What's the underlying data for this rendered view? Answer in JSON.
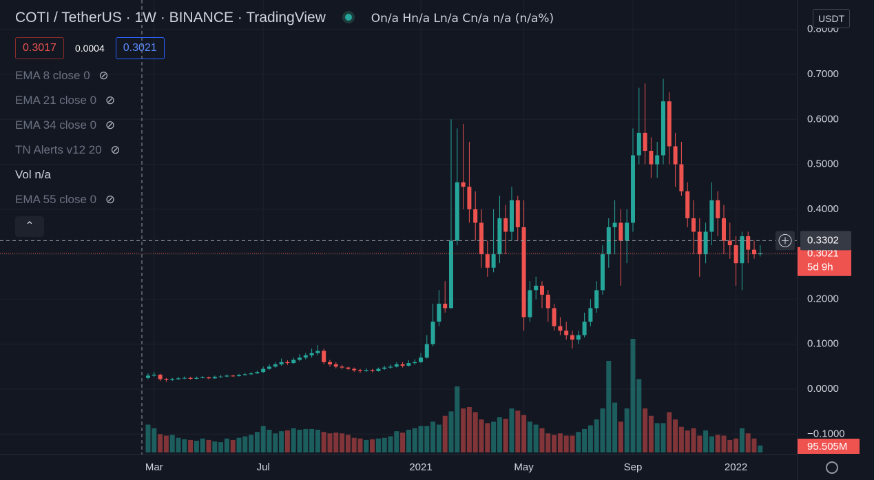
{
  "chart_data": {
    "type": "candlestick",
    "symbol": "COTI / TetherUS",
    "interval": "1W",
    "exchange": "BINANCE",
    "brand": "TradingView",
    "ohlc_legend": "On/a Hn/a Ln/a Cn/a n/a (n/a%)",
    "sell_price": "0.3017",
    "spread": "0.0004",
    "buy_price": "0.3021",
    "indicators": [
      "EMA 8 close 0",
      "EMA 21 close 0",
      "EMA 34 close 0",
      "TN Alerts v12 20",
      "Vol n/a",
      "EMA 55 close 0"
    ],
    "currency": "USDT",
    "crosshair_price": {
      "value": 0.3302,
      "label": "0.3302"
    },
    "last_price": {
      "value": 0.3021,
      "label": "0.3021"
    },
    "countdown": "5d 9h",
    "last_volume_label": "95.505M",
    "up_color": "#26a69a",
    "down_color": "#ef5350",
    "ylim": [
      -0.115,
      0.82
    ],
    "yticks": [
      {
        "value": 0.8,
        "label": "0.8000"
      },
      {
        "value": 0.7,
        "label": "0.7000"
      },
      {
        "value": 0.6,
        "label": "0.6000"
      },
      {
        "value": 0.5,
        "label": "0.5000"
      },
      {
        "value": 0.4,
        "label": "0.4000"
      },
      {
        "value": 0.3,
        "label": "0.3000"
      },
      {
        "value": 0.2,
        "label": "0.2000"
      },
      {
        "value": 0.1,
        "label": "0.1000"
      },
      {
        "value": 0,
        "label": "0.0000"
      },
      {
        "value": -0.1,
        "label": "−0.1000"
      }
    ],
    "xticks": [
      {
        "value": 1,
        "label": "Mar"
      },
      {
        "value": 19,
        "label": "Jul"
      },
      {
        "value": 45,
        "label": "2021"
      },
      {
        "value": 62,
        "label": "May"
      },
      {
        "value": 80,
        "label": "Sep"
      },
      {
        "value": 97,
        "label": "2022"
      }
    ],
    "candles": [
      [
        0.025,
        0.035,
        0.022,
        0.03
      ],
      [
        0.03,
        0.038,
        0.027,
        0.032
      ],
      [
        0.032,
        0.034,
        0.018,
        0.022
      ],
      [
        0.022,
        0.025,
        0.016,
        0.02
      ],
      [
        0.02,
        0.025,
        0.018,
        0.022
      ],
      [
        0.022,
        0.027,
        0.02,
        0.024
      ],
      [
        0.024,
        0.028,
        0.022,
        0.025
      ],
      [
        0.025,
        0.027,
        0.021,
        0.023
      ],
      [
        0.023,
        0.028,
        0.022,
        0.025
      ],
      [
        0.025,
        0.029,
        0.024,
        0.026
      ],
      [
        0.026,
        0.028,
        0.022,
        0.024
      ],
      [
        0.024,
        0.03,
        0.023,
        0.027
      ],
      [
        0.027,
        0.031,
        0.025,
        0.028
      ],
      [
        0.028,
        0.033,
        0.026,
        0.03
      ],
      [
        0.03,
        0.032,
        0.027,
        0.029
      ],
      [
        0.029,
        0.034,
        0.028,
        0.031
      ],
      [
        0.031,
        0.036,
        0.03,
        0.033
      ],
      [
        0.033,
        0.038,
        0.031,
        0.035
      ],
      [
        0.035,
        0.041,
        0.034,
        0.038
      ],
      [
        0.038,
        0.05,
        0.036,
        0.045
      ],
      [
        0.045,
        0.055,
        0.043,
        0.05
      ],
      [
        0.05,
        0.06,
        0.047,
        0.055
      ],
      [
        0.055,
        0.068,
        0.052,
        0.06
      ],
      [
        0.06,
        0.064,
        0.054,
        0.058
      ],
      [
        0.058,
        0.07,
        0.056,
        0.065
      ],
      [
        0.065,
        0.078,
        0.062,
        0.07
      ],
      [
        0.07,
        0.08,
        0.066,
        0.075
      ],
      [
        0.075,
        0.09,
        0.07,
        0.08
      ],
      [
        0.08,
        0.098,
        0.075,
        0.085
      ],
      [
        0.085,
        0.09,
        0.055,
        0.06
      ],
      [
        0.06,
        0.065,
        0.05,
        0.055
      ],
      [
        0.055,
        0.06,
        0.046,
        0.05
      ],
      [
        0.05,
        0.054,
        0.044,
        0.048
      ],
      [
        0.048,
        0.05,
        0.042,
        0.045
      ],
      [
        0.045,
        0.048,
        0.038,
        0.042
      ],
      [
        0.042,
        0.045,
        0.036,
        0.04
      ],
      [
        0.04,
        0.046,
        0.038,
        0.042
      ],
      [
        0.042,
        0.045,
        0.037,
        0.04
      ],
      [
        0.04,
        0.048,
        0.039,
        0.045
      ],
      [
        0.045,
        0.052,
        0.043,
        0.048
      ],
      [
        0.048,
        0.055,
        0.045,
        0.05
      ],
      [
        0.05,
        0.06,
        0.048,
        0.055
      ],
      [
        0.055,
        0.06,
        0.048,
        0.052
      ],
      [
        0.052,
        0.064,
        0.05,
        0.058
      ],
      [
        0.058,
        0.066,
        0.054,
        0.06
      ],
      [
        0.06,
        0.08,
        0.058,
        0.07
      ],
      [
        0.07,
        0.12,
        0.068,
        0.1
      ],
      [
        0.1,
        0.19,
        0.095,
        0.15
      ],
      [
        0.15,
        0.22,
        0.14,
        0.19
      ],
      [
        0.19,
        0.24,
        0.17,
        0.18
      ],
      [
        0.18,
        0.6,
        0.18,
        0.33
      ],
      [
        0.33,
        0.58,
        0.32,
        0.46
      ],
      [
        0.46,
        0.59,
        0.4,
        0.45
      ],
      [
        0.45,
        0.55,
        0.37,
        0.4
      ],
      [
        0.4,
        0.44,
        0.33,
        0.37
      ],
      [
        0.37,
        0.4,
        0.27,
        0.3
      ],
      [
        0.3,
        0.33,
        0.25,
        0.27
      ],
      [
        0.27,
        0.4,
        0.26,
        0.3
      ],
      [
        0.3,
        0.43,
        0.28,
        0.38
      ],
      [
        0.38,
        0.41,
        0.3,
        0.35
      ],
      [
        0.35,
        0.45,
        0.33,
        0.42
      ],
      [
        0.42,
        0.43,
        0.33,
        0.36
      ],
      [
        0.36,
        0.42,
        0.13,
        0.16
      ],
      [
        0.16,
        0.24,
        0.15,
        0.22
      ],
      [
        0.22,
        0.25,
        0.2,
        0.23
      ],
      [
        0.23,
        0.24,
        0.18,
        0.21
      ],
      [
        0.21,
        0.22,
        0.15,
        0.18
      ],
      [
        0.18,
        0.19,
        0.13,
        0.14
      ],
      [
        0.14,
        0.16,
        0.12,
        0.13
      ],
      [
        0.13,
        0.15,
        0.11,
        0.12
      ],
      [
        0.12,
        0.13,
        0.09,
        0.11
      ],
      [
        0.11,
        0.13,
        0.1,
        0.12
      ],
      [
        0.12,
        0.17,
        0.115,
        0.15
      ],
      [
        0.15,
        0.2,
        0.14,
        0.18
      ],
      [
        0.18,
        0.24,
        0.17,
        0.22
      ],
      [
        0.22,
        0.32,
        0.21,
        0.3
      ],
      [
        0.3,
        0.38,
        0.27,
        0.36
      ],
      [
        0.36,
        0.42,
        0.3,
        0.37
      ],
      [
        0.37,
        0.4,
        0.23,
        0.33
      ],
      [
        0.33,
        0.4,
        0.28,
        0.37
      ],
      [
        0.37,
        0.58,
        0.35,
        0.52
      ],
      [
        0.52,
        0.67,
        0.5,
        0.57
      ],
      [
        0.57,
        0.68,
        0.5,
        0.53
      ],
      [
        0.53,
        0.56,
        0.47,
        0.5
      ],
      [
        0.5,
        0.55,
        0.47,
        0.52
      ],
      [
        0.52,
        0.69,
        0.5,
        0.64
      ],
      [
        0.64,
        0.66,
        0.5,
        0.54
      ],
      [
        0.54,
        0.57,
        0.45,
        0.5
      ],
      [
        0.5,
        0.55,
        0.43,
        0.44
      ],
      [
        0.44,
        0.46,
        0.36,
        0.38
      ],
      [
        0.38,
        0.42,
        0.3,
        0.35
      ],
      [
        0.35,
        0.38,
        0.25,
        0.3
      ],
      [
        0.3,
        0.37,
        0.28,
        0.35
      ],
      [
        0.35,
        0.46,
        0.32,
        0.42
      ],
      [
        0.42,
        0.44,
        0.34,
        0.38
      ],
      [
        0.38,
        0.41,
        0.3,
        0.33
      ],
      [
        0.33,
        0.37,
        0.29,
        0.32
      ],
      [
        0.32,
        0.34,
        0.23,
        0.28
      ],
      [
        0.28,
        0.35,
        0.22,
        0.34
      ],
      [
        0.34,
        0.35,
        0.28,
        0.31
      ],
      [
        0.31,
        0.33,
        0.29,
        0.3
      ],
      [
        0.3,
        0.32,
        0.295,
        0.3021
      ]
    ],
    "volume": [
      380,
      330,
      250,
      230,
      240,
      200,
      180,
      170,
      160,
      190,
      170,
      150,
      140,
      190,
      170,
      200,
      220,
      240,
      280,
      360,
      310,
      260,
      290,
      300,
      330,
      310,
      320,
      320,
      310,
      280,
      260,
      270,
      260,
      240,
      200,
      190,
      170,
      180,
      190,
      200,
      220,
      290,
      270,
      310,
      330,
      360,
      360,
      420,
      380,
      500,
      560,
      900,
      600,
      620,
      550,
      450,
      400,
      420,
      480,
      460,
      600,
      570,
      510,
      420,
      380,
      330,
      260,
      240,
      260,
      230,
      230,
      280,
      320,
      370,
      450,
      600,
      1250,
      680,
      420,
      600,
      1550,
      1000,
      600,
      500,
      400,
      400,
      550,
      450,
      350,
      300,
      330,
      230,
      300,
      220,
      240,
      230,
      170,
      190,
      330,
      260,
      190,
      95.505
    ]
  }
}
